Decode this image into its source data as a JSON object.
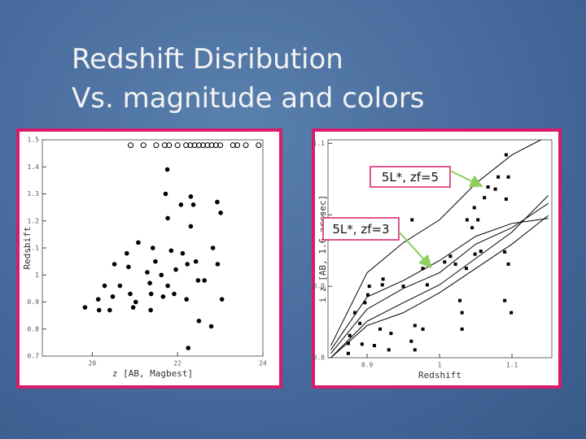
{
  "slide": {
    "title_lines": [
      "Redshift Disribution",
      "Vs. magnitude and colors"
    ]
  },
  "chart_data": [
    {
      "type": "scatter",
      "xlabel": "z [AB, Magbest]",
      "ylabel": "Redshift",
      "xlim": [
        18.83,
        24
      ],
      "ylim": [
        0.7,
        1.5
      ],
      "xticks": [
        20,
        22,
        24
      ],
      "yticks": [
        0.7,
        0.8,
        0.9,
        1,
        1.1,
        1.2,
        1.3,
        1.4,
        1.5
      ],
      "series": [
        {
          "marker": "dot",
          "color": "#000000",
          "x": [
            21.76,
            21.72,
            22.31,
            22.37,
            22.93,
            23.01,
            22.08,
            21.77,
            22.31,
            21.08,
            21.42,
            20.81,
            20.52,
            20.85,
            21.48,
            21.85,
            22.12,
            22.43,
            22.83,
            22.94,
            21.29,
            21.62,
            21.96,
            22.23,
            22.48,
            20.29,
            20.65,
            20.89,
            21.35,
            21.77,
            21.92,
            22.21,
            22.63,
            20.14,
            20.48,
            21.02,
            21.38,
            21.66,
            19.83,
            20.16,
            20.41,
            20.96,
            21.37,
            22.5,
            22.79,
            22.25,
            23.04
          ],
          "y": [
            1.39,
            1.3,
            1.29,
            1.26,
            1.27,
            1.23,
            1.26,
            1.21,
            1.18,
            1.12,
            1.1,
            1.08,
            1.04,
            1.03,
            1.05,
            1.09,
            1.08,
            1.05,
            1.1,
            1.04,
            1.01,
            1.0,
            1.02,
            1.04,
            0.98,
            0.96,
            0.96,
            0.93,
            0.97,
            0.96,
            0.93,
            0.91,
            0.98,
            0.91,
            0.92,
            0.9,
            0.93,
            0.92,
            0.88,
            0.87,
            0.87,
            0.88,
            0.87,
            0.83,
            0.81,
            0.73,
            0.91
          ]
        },
        {
          "marker": "circle",
          "color": "#000000",
          "x": [
            20.9,
            21.2,
            21.5,
            21.7,
            21.8,
            22.0,
            22.2,
            22.3,
            22.4,
            22.5,
            22.6,
            22.7,
            22.8,
            22.9,
            23.0,
            23.3,
            23.4,
            23.6,
            23.9
          ],
          "y": [
            1.48,
            1.48,
            1.48,
            1.48,
            1.48,
            1.48,
            1.48,
            1.48,
            1.48,
            1.48,
            1.48,
            1.48,
            1.48,
            1.48,
            1.48,
            1.48,
            1.48,
            1.48,
            1.48
          ]
        }
      ]
    },
    {
      "type": "scatter",
      "xlabel": "Redshift",
      "ylabel": "i z [AB, 1.6 arcsec]",
      "xlim": [
        0.846,
        1.155
      ],
      "ylim": [
        0.8,
        1.105
      ],
      "xticks": [
        0.9,
        1,
        1.1
      ],
      "yticks": [
        0.8,
        0.9,
        1,
        1.1
      ],
      "series": [
        {
          "marker": "square",
          "color": "#000000",
          "x": [
            1.092,
            1.081,
            1.095,
            1.067,
            1.077,
            1.062,
            1.092,
            1.048,
            0.962,
            1.038,
            1.053,
            1.045,
            1.015,
            1.049,
            1.057,
            1.09,
            1.007,
            0.977,
            0.922,
            0.903,
            0.921,
            0.95,
            0.983,
            0.901,
            1.037,
            1.022,
            1.095,
            1.028,
            1.09,
            0.897,
            0.883,
            1.031,
            1.099,
            0.89,
            0.966,
            0.977,
            0.918,
            0.933,
            1.031,
            0.876,
            0.874,
            0.893,
            0.91,
            0.93,
            0.966,
            0.874,
            0.961
          ],
          "y": [
            1.084,
            1.053,
            1.053,
            1.039,
            1.036,
            1.024,
            1.022,
            1.01,
            0.993,
            0.993,
            0.993,
            0.982,
            0.942,
            0.945,
            0.949,
            0.948,
            0.934,
            0.925,
            0.91,
            0.9,
            0.902,
            0.9,
            0.902,
            0.888,
            0.925,
            0.931,
            0.931,
            0.88,
            0.88,
            0.877,
            0.863,
            0.863,
            0.863,
            0.848,
            0.845,
            0.84,
            0.84,
            0.834,
            0.84,
            0.831,
            0.82,
            0.819,
            0.817,
            0.811,
            0.811,
            0.806,
            0.823
          ]
        },
        {
          "marker": "line",
          "color": "#000000",
          "x": [
            0.85,
            0.9,
            0.95,
            1,
            1.05,
            1.1,
            1.14
          ],
          "y": [
            0.817,
            0.919,
            0.961,
            0.993,
            1.044,
            1.084,
            1.105
          ]
        },
        {
          "marker": "line",
          "color": "#000000",
          "x": [
            0.85,
            0.9,
            0.95,
            1,
            1.05,
            1.1,
            1.15
          ],
          "y": [
            0.811,
            0.885,
            0.908,
            0.936,
            0.97,
            0.988,
            0.995
          ]
        },
        {
          "marker": "line",
          "color": "#000000",
          "x": [
            0.85,
            0.9,
            0.95,
            1,
            1.05,
            1.1,
            1.15
          ],
          "y": [
            0.806,
            0.868,
            0.897,
            0.919,
            0.959,
            0.982,
            1.016
          ]
        },
        {
          "marker": "line",
          "color": "#000000",
          "x": [
            0.85,
            0.9,
            0.95,
            1,
            1.05,
            1.1,
            1.15
          ],
          "y": [
            0.8,
            0.851,
            0.877,
            0.902,
            0.939,
            0.976,
            1.027
          ]
        },
        {
          "marker": "line",
          "color": "#000000",
          "x": [
            0.85,
            0.9,
            0.95,
            1,
            1.05,
            1.1,
            1.15
          ],
          "y": [
            0.8,
            0.845,
            0.863,
            0.891,
            0.925,
            0.959,
            0.999
          ]
        }
      ],
      "annotations": [
        {
          "text": "5L*, zf=5"
        },
        {
          "text": "5L*, zf=3"
        }
      ]
    }
  ]
}
